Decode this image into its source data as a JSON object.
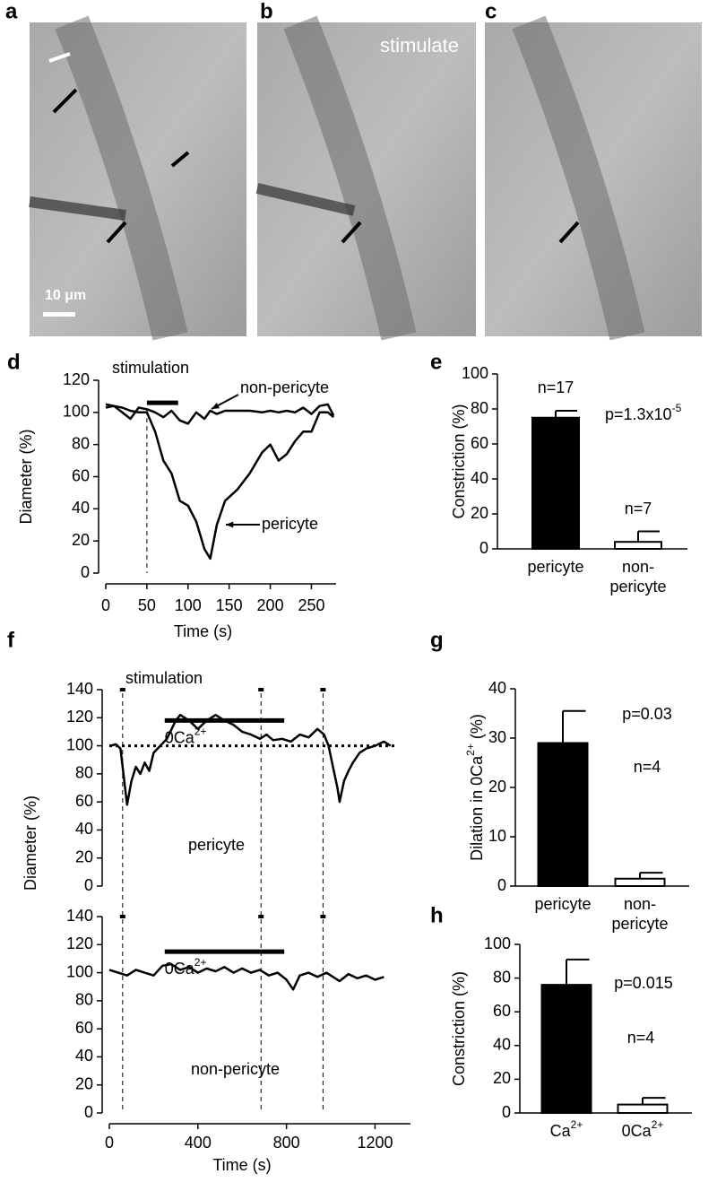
{
  "image_panels": [
    {
      "label": "a",
      "scale_bar": "10 μm"
    },
    {
      "label": "b",
      "annotation": "stimulate"
    },
    {
      "label": "c"
    }
  ],
  "chart_data": [
    {
      "type": "line",
      "panel_label": "d",
      "xlabel": "Time (s)",
      "ylabel": "Diameter (%)",
      "x": [
        0,
        10,
        20,
        30,
        40,
        50,
        60,
        70,
        80,
        90,
        100,
        110,
        120,
        127,
        135,
        145,
        160,
        175,
        190,
        200,
        210,
        220,
        230,
        240,
        250,
        260,
        270,
        277
      ],
      "xlim": [
        0,
        280
      ],
      "xticks": [
        0,
        50,
        100,
        150,
        200,
        250
      ],
      "ylim": [
        0,
        120
      ],
      "yticks": [
        0,
        20,
        40,
        60,
        80,
        100,
        120
      ],
      "series": [
        {
          "name": "pericyte",
          "color": "#000000",
          "values": [
            103,
            104,
            103,
            101,
            100,
            100,
            88,
            70,
            62,
            45,
            42,
            32,
            15,
            9,
            30,
            45,
            52,
            62,
            75,
            80,
            70,
            74,
            82,
            88,
            88,
            100,
            100,
            97
          ]
        },
        {
          "name": "non-pericyte",
          "color": "#000000",
          "values": [
            105,
            104,
            100,
            96,
            103,
            102,
            100,
            97,
            101,
            95,
            93,
            100,
            96,
            101,
            99,
            101,
            101,
            101,
            100,
            101,
            100,
            101,
            100,
            103,
            99,
            104,
            105,
            98
          ]
        }
      ],
      "stimulation": {
        "label": "stimulation",
        "start": 50,
        "end": 88
      }
    },
    {
      "type": "bar",
      "panel_label": "e",
      "ylabel": "Constriction (%)",
      "categories": [
        "pericyte",
        "non-pericyte"
      ],
      "values": [
        75,
        4
      ],
      "errors": [
        4,
        6
      ],
      "colors": [
        "#000000",
        "#ffffff"
      ],
      "ylim": [
        0,
        100
      ],
      "yticks": [
        0,
        20,
        40,
        60,
        80,
        100
      ],
      "annotations": [
        "n=17",
        {
          "text": "p=1.3x10",
          "sup": "-5"
        },
        "n=7"
      ]
    },
    {
      "type": "line",
      "panel_label": "f",
      "ylabel": "Diameter (%)",
      "x": [
        0,
        30,
        50,
        60,
        80,
        100,
        120,
        140,
        160,
        180,
        200,
        230,
        260,
        300,
        320,
        360,
        400,
        440,
        480,
        520,
        560,
        600,
        640,
        680,
        710,
        740,
        780,
        820,
        860,
        900,
        940,
        970,
        990,
        1010,
        1030,
        1040,
        1060,
        1080,
        1100,
        1130,
        1160,
        1200,
        1240,
        1270
      ],
      "xlim": [
        0,
        1360
      ],
      "ylim": [
        0,
        140
      ],
      "yticks": [
        0,
        20,
        40,
        60,
        80,
        100,
        120,
        140
      ],
      "series": [
        {
          "name": "pericyte",
          "color": "#000000",
          "values": [
            100,
            101,
            98,
            85,
            58,
            75,
            85,
            80,
            88,
            82,
            95,
            100,
            105,
            118,
            122,
            118,
            112,
            118,
            122,
            118,
            115,
            110,
            108,
            105,
            108,
            104,
            105,
            103,
            108,
            106,
            112,
            108,
            100,
            85,
            70,
            60,
            75,
            82,
            88,
            95,
            98,
            100,
            103,
            100
          ]
        }
      ],
      "stimulation": {
        "label": "stimulation",
        "times": [
          60,
          685,
          965
        ]
      },
      "reference_line": 100,
      "bar_label": {
        "text": "0Ca",
        "sup": "2+",
        "start": 250,
        "end": 790
      }
    },
    {
      "type": "line",
      "xlabel": "Time (s)",
      "x": [
        0,
        40,
        80,
        120,
        160,
        200,
        240,
        280,
        320,
        360,
        400,
        440,
        480,
        520,
        560,
        600,
        640,
        680,
        720,
        760,
        800,
        830,
        860,
        900,
        940,
        980,
        1000,
        1040,
        1080,
        1120,
        1160,
        1200,
        1240
      ],
      "xlim": [
        0,
        1360
      ],
      "xticks": [
        0,
        400,
        800,
        1200
      ],
      "ylim": [
        0,
        140
      ],
      "yticks": [
        0,
        20,
        40,
        60,
        80,
        100,
        120,
        140
      ],
      "series": [
        {
          "name": "non-pericyte",
          "color": "#000000",
          "values": [
            102,
            100,
            98,
            102,
            100,
            98,
            105,
            106,
            102,
            104,
            100,
            103,
            101,
            104,
            100,
            103,
            100,
            102,
            98,
            100,
            95,
            88,
            98,
            100,
            97,
            100,
            98,
            94,
            99,
            96,
            98,
            95,
            97
          ]
        }
      ],
      "stimulation": {
        "times": [
          60,
          685,
          965
        ]
      },
      "bar_label": {
        "text": "0Ca",
        "sup": "2+",
        "start": 250,
        "end": 790
      }
    },
    {
      "type": "bar",
      "panel_label": "g",
      "ylabel": {
        "before": "Dilation in  0Ca",
        "sup": "2+",
        "after": " (%)"
      },
      "categories": [
        "pericyte",
        "non-pericyte"
      ],
      "values": [
        29,
        1.5
      ],
      "errors": [
        6.5,
        1.2
      ],
      "colors": [
        "#000000",
        "#ffffff"
      ],
      "ylim": [
        0,
        40
      ],
      "yticks": [
        0,
        10,
        20,
        30,
        40
      ],
      "annotations": [
        "p=0.03",
        "n=4"
      ]
    },
    {
      "type": "bar",
      "panel_label": "h",
      "ylabel": "Constriction (%)",
      "categories": [
        {
          "text": "Ca",
          "sup": "2+"
        },
        {
          "text": "0Ca",
          "sup": "2+"
        }
      ],
      "values": [
        76,
        5
      ],
      "errors": [
        15,
        4
      ],
      "colors": [
        "#000000",
        "#ffffff"
      ],
      "ylim": [
        0,
        100
      ],
      "yticks": [
        0,
        20,
        40,
        60,
        80,
        100
      ],
      "annotations": [
        "p=0.015",
        "n=4"
      ]
    }
  ]
}
